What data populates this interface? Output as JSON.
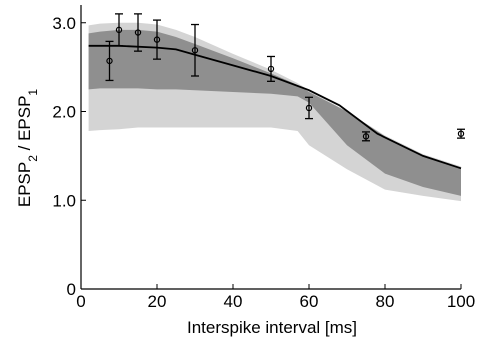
{
  "chart_data": {
    "type": "line",
    "xlabel": "Interspike interval [ms]",
    "ylabel": {
      "main": "EPSP",
      "sub1": "2",
      "sep": " / EPSP",
      "sub2": "1"
    },
    "xlim": [
      0,
      100
    ],
    "ylim": [
      0,
      3.2
    ],
    "xticks": [
      {
        "value": 0,
        "label": "0"
      },
      {
        "value": 20,
        "label": "20"
      },
      {
        "value": 40,
        "label": "40"
      },
      {
        "value": 60,
        "label": "60"
      },
      {
        "value": 80,
        "label": "80"
      },
      {
        "value": 100,
        "label": "100"
      }
    ],
    "yticks": [
      {
        "value": 0,
        "label": "0"
      },
      {
        "value": 1,
        "label": "1.0"
      },
      {
        "value": 2,
        "label": "2.0"
      },
      {
        "value": 3,
        "label": "3.0"
      }
    ],
    "grid": false,
    "colors": {
      "light_band": "#d4d4d4",
      "dark_band": "#8f8f8f",
      "line": "#000000",
      "markers": "#000000"
    },
    "light_band": {
      "x": [
        2,
        5,
        10,
        15,
        20,
        25,
        30,
        40,
        50,
        57,
        60,
        70,
        80,
        90,
        100
      ],
      "upper": [
        2.97,
        2.99,
        3.0,
        3.0,
        2.98,
        2.92,
        2.84,
        2.65,
        2.47,
        2.32,
        2.24,
        2.0,
        1.73,
        1.52,
        1.38
      ],
      "lower": [
        1.78,
        1.79,
        1.8,
        1.82,
        1.82,
        1.82,
        1.82,
        1.82,
        1.82,
        1.78,
        1.62,
        1.35,
        1.12,
        1.05,
        0.99
      ]
    },
    "dark_band": {
      "x": [
        2,
        5,
        10,
        15,
        20,
        25,
        30,
        40,
        50,
        57,
        60,
        70,
        80,
        90,
        100
      ],
      "upper": [
        2.88,
        2.9,
        2.92,
        2.92,
        2.9,
        2.84,
        2.76,
        2.6,
        2.43,
        2.3,
        2.22,
        2.0,
        1.72,
        1.5,
        1.36
      ],
      "lower": [
        2.25,
        2.26,
        2.26,
        2.26,
        2.25,
        2.25,
        2.24,
        2.22,
        2.2,
        2.17,
        2.1,
        1.62,
        1.3,
        1.15,
        1.05
      ]
    },
    "model_line": {
      "x": [
        2,
        10,
        20,
        25,
        30,
        40,
        50,
        60,
        68,
        78,
        90,
        100
      ],
      "y": [
        2.74,
        2.74,
        2.72,
        2.7,
        2.64,
        2.52,
        2.4,
        2.24,
        2.07,
        1.75,
        1.5,
        1.36
      ]
    },
    "measurements": [
      {
        "x": 7.5,
        "y": 2.57,
        "err": 0.22
      },
      {
        "x": 10,
        "y": 2.92,
        "err": 0.18
      },
      {
        "x": 15,
        "y": 2.89,
        "err": 0.21
      },
      {
        "x": 20,
        "y": 2.81,
        "err": 0.22
      },
      {
        "x": 30,
        "y": 2.69,
        "err": 0.29
      },
      {
        "x": 50,
        "y": 2.48,
        "err": 0.14
      },
      {
        "x": 60,
        "y": 2.04,
        "err": 0.12
      },
      {
        "x": 75,
        "y": 1.72,
        "err": 0.05
      },
      {
        "x": 100,
        "y": 1.75,
        "err": 0.05
      }
    ]
  }
}
